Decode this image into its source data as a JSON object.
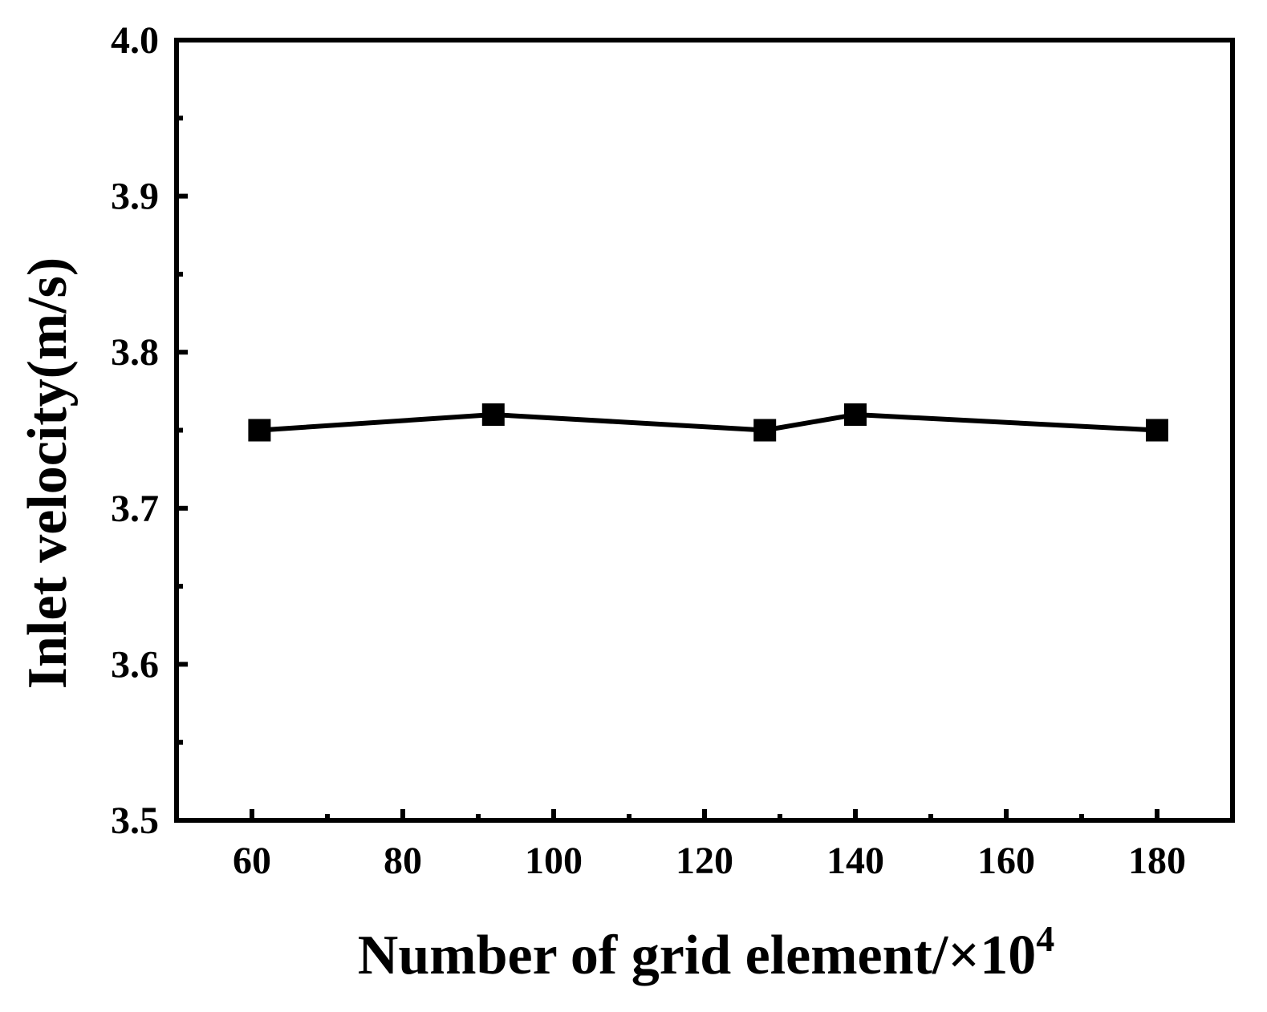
{
  "chart_data": {
    "type": "line",
    "xlabel": "Number of grid element/×10",
    "xlabel_superscript": "4",
    "ylabel": "Inlet velocity(m/s)",
    "xlim": [
      50,
      190
    ],
    "ylim": [
      3.5,
      4.0
    ],
    "x_ticks": [
      60,
      80,
      100,
      120,
      140,
      160,
      180
    ],
    "x_tick_labels": [
      "60",
      "80",
      "100",
      "120",
      "140",
      "160",
      "180"
    ],
    "x_minor_ticks": [
      70,
      90,
      110,
      130,
      150,
      170
    ],
    "y_ticks": [
      3.5,
      3.6,
      3.7,
      3.8,
      3.9,
      4.0
    ],
    "y_tick_labels": [
      "3.5",
      "3.6",
      "3.7",
      "3.8",
      "3.9",
      "4.0"
    ],
    "y_minor_ticks": [
      3.55,
      3.65,
      3.75,
      3.85,
      3.95
    ],
    "grid": false,
    "marker": "square",
    "line_color": "#000000",
    "series": [
      {
        "x": [
          61,
          92,
          128,
          140,
          180
        ],
        "y": [
          3.75,
          3.76,
          3.75,
          3.76,
          3.75
        ]
      }
    ]
  }
}
